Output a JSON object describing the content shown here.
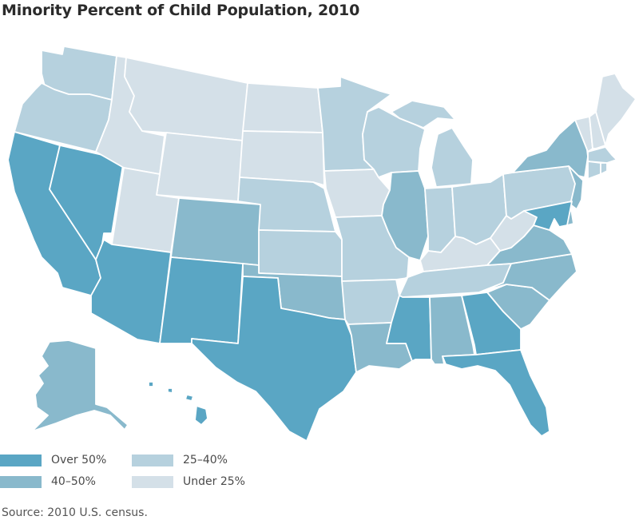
{
  "title": "Minority Percent of Child Population, 2010",
  "source": "Source: 2010 U.S. census.",
  "legend": [
    {
      "key": "over50",
      "label": "Over 50%",
      "color": "#5aa6c4"
    },
    {
      "key": "40to50",
      "label": "40–50%",
      "color": "#89b9cc"
    },
    {
      "key": "25to40",
      "label": "25–40%",
      "color": "#b6d1de"
    },
    {
      "key": "under25",
      "label": "Under 25%",
      "color": "#d4e0e8"
    }
  ],
  "states": {
    "WA": "25to40",
    "OR": "25to40",
    "CA": "over50",
    "NV": "over50",
    "ID": "under25",
    "MT": "under25",
    "WY": "under25",
    "UT": "under25",
    "AZ": "over50",
    "CO": "40to50",
    "NM": "over50",
    "ND": "under25",
    "SD": "under25",
    "NE": "25to40",
    "KS": "25to40",
    "OK": "40to50",
    "TX": "over50",
    "MN": "25to40",
    "IA": "under25",
    "MO": "25to40",
    "AR": "25to40",
    "LA": "40to50",
    "WI": "25to40",
    "IL": "40to50",
    "MI": "25to40",
    "IN": "25to40",
    "OH": "25to40",
    "KY": "under25",
    "TN": "25to40",
    "MS": "over50",
    "AL": "40to50",
    "GA": "over50",
    "FL": "over50",
    "SC": "40to50",
    "NC": "40to50",
    "VA": "40to50",
    "WV": "under25",
    "PA": "25to40",
    "NY": "40to50",
    "NJ": "40to50",
    "DE": "40to50",
    "MD": "over50",
    "CT": "25to40",
    "RI": "25to40",
    "MA": "25to40",
    "VT": "under25",
    "NH": "under25",
    "ME": "under25",
    "AK": "40to50",
    "HI": "over50"
  }
}
